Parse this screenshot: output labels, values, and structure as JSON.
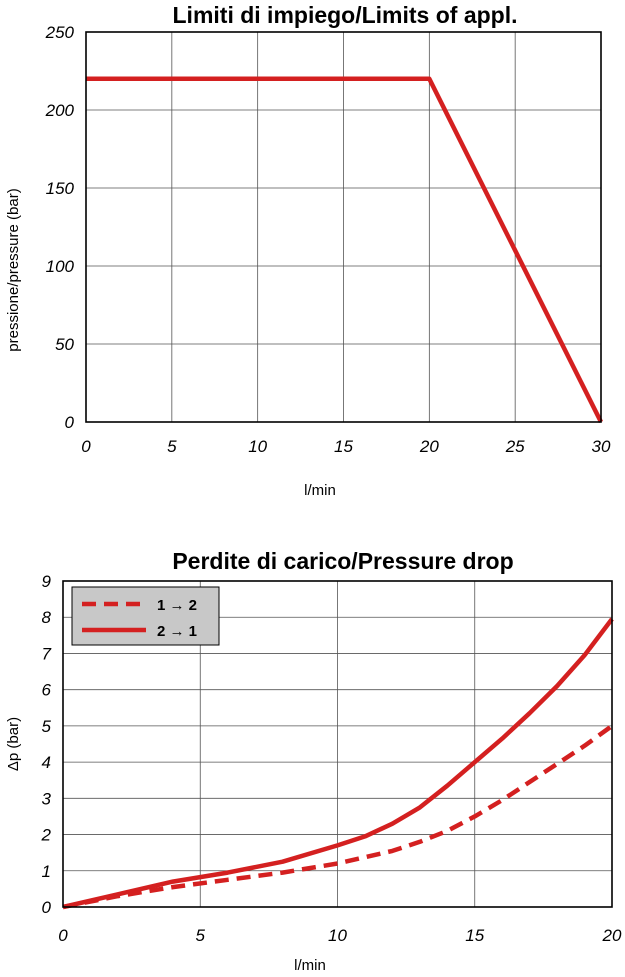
{
  "chart_data": [
    {
      "type": "line",
      "title": "Limiti di impiego/Limits of appl.",
      "xlabel": "l/min",
      "ylabel": "pressione/pressure (bar)",
      "xlim": [
        0,
        30
      ],
      "ylim": [
        0,
        250
      ],
      "xticks": [
        "0",
        "5",
        "10",
        "15",
        "20",
        "25",
        "30"
      ],
      "yticks": [
        "0",
        "50",
        "100",
        "150",
        "200",
        "250"
      ],
      "grid": true,
      "color": "#d42020",
      "series": [
        {
          "x": [
            0,
            20,
            30
          ],
          "y": [
            220,
            220,
            0
          ]
        }
      ]
    },
    {
      "type": "line",
      "title": "Perdite di carico/Pressure drop",
      "xlabel": "l/min",
      "ylabel": "Δp (bar)",
      "xlim": [
        0,
        20
      ],
      "ylim": [
        0,
        9
      ],
      "xticks": [
        "0",
        "5",
        "10",
        "15",
        "20"
      ],
      "yticks": [
        "0",
        "1",
        "2",
        "3",
        "4",
        "5",
        "6",
        "7",
        "8",
        "9"
      ],
      "grid": true,
      "legend": "top-left",
      "color": "#d42020",
      "series": [
        {
          "name": "1 → 2",
          "style": "dashed",
          "x": [
            0,
            2,
            4,
            6,
            8,
            10,
            12,
            13,
            14,
            15,
            16,
            17,
            18,
            19,
            20
          ],
          "y": [
            0,
            0.3,
            0.55,
            0.75,
            0.95,
            1.2,
            1.55,
            1.8,
            2.1,
            2.5,
            2.95,
            3.45,
            3.95,
            4.45,
            5.0
          ]
        },
        {
          "name": "2 → 1",
          "style": "solid",
          "x": [
            0,
            2,
            4,
            6,
            8,
            10,
            11,
            12,
            13,
            14,
            15,
            16,
            17,
            18,
            19,
            20
          ],
          "y": [
            0,
            0.35,
            0.7,
            0.95,
            1.25,
            1.7,
            1.95,
            2.3,
            2.75,
            3.35,
            4.0,
            4.65,
            5.35,
            6.1,
            6.95,
            7.95
          ]
        }
      ]
    }
  ]
}
